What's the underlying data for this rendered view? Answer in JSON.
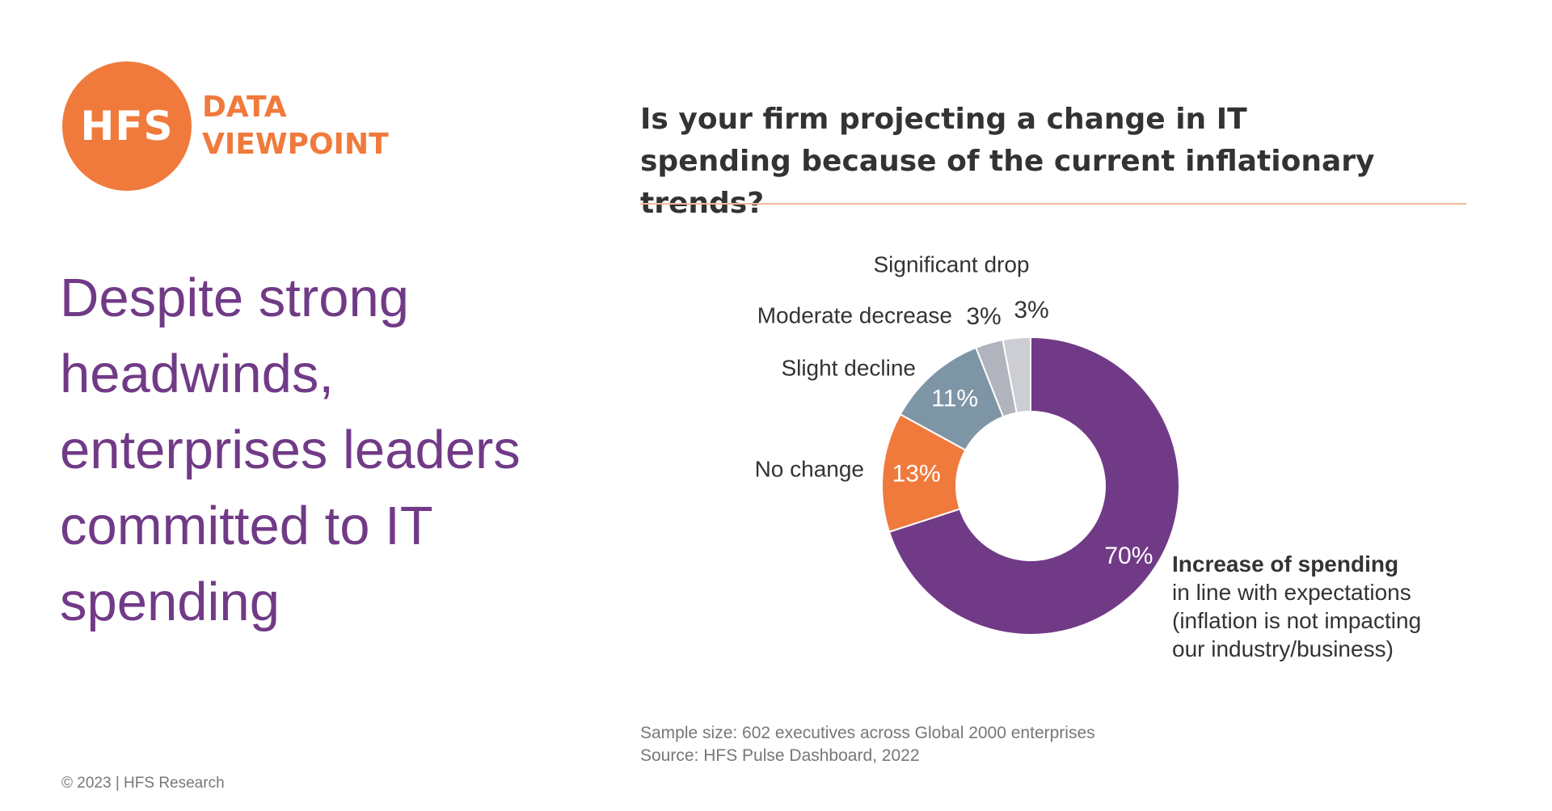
{
  "logo": {
    "mark": "HFS",
    "line1": "DATA",
    "line2": "VIEWPOINT",
    "color": "#F07A3C"
  },
  "headline": "Despite strong headwinds, enterprises leaders committed to IT spending",
  "question": "Is your firm projecting a change in IT spending because of the current inflationary trends?",
  "chart_data": {
    "type": "pie",
    "donut": true,
    "categories": [
      "Increase of spending",
      "No change",
      "Slight decline",
      "Moderate decrease",
      "Significant drop"
    ],
    "values": [
      70,
      13,
      11,
      3,
      3
    ],
    "value_labels": [
      "70%",
      "13%",
      "11%",
      "3%",
      "3%"
    ],
    "colors": [
      "#713A86",
      "#F07A3C",
      "#7E95A6",
      "#B1B4BC",
      "#CDCED4"
    ],
    "title": "Is your firm projecting a change in IT spending because of the current inflationary trends?"
  },
  "callout": {
    "bold": "Increase of spending",
    "lines": [
      "in line with expectations",
      "(inflation is not impacting",
      "our industry/business)"
    ]
  },
  "notes": {
    "sample": "Sample size: 602 executives across Global 2000 enterprises",
    "source": "Source: HFS Pulse Dashboard, 2022"
  },
  "copyright": "© 2023 | HFS Research"
}
